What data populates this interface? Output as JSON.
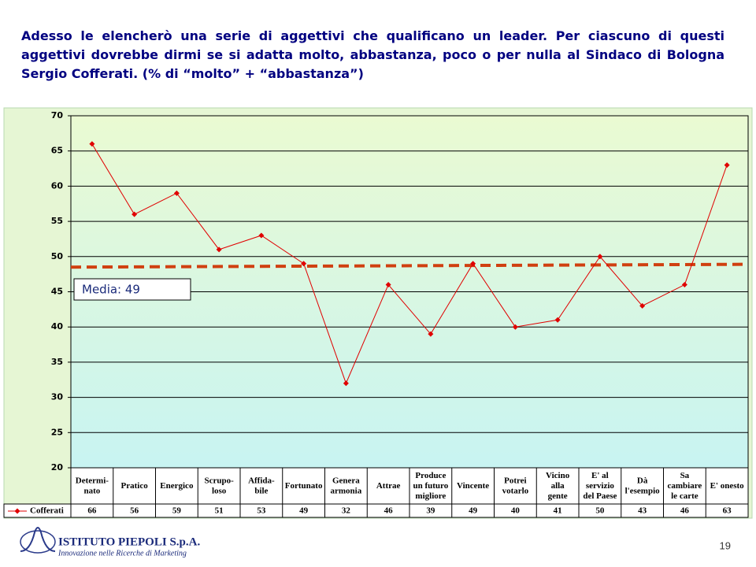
{
  "chart_data": {
    "type": "line",
    "title": "Adesso le elencherò una serie di aggettivi che qualificano un leader. Per ciascuno di questi aggettivi dovrebbe dirmi se si adatta molto, abbastanza, poco o per nulla al Sindaco di Bologna Sergio Cofferati. (% di “molto” + “abbastanza”)",
    "categories": [
      "Determi-\nnato",
      "Pratico",
      "Energico",
      "Scrupo-\nloso",
      "Affida-\nbile",
      "Fortunato",
      "Genera\narmonia",
      "Attrae",
      "Produce\nun futuro\nmigliore",
      "Vincente",
      "Potrei\nvotarlo",
      "Vicino\nalla\ngente",
      "E' al\nservizio\ndel Paese",
      "Dà\nl'esempio",
      "Sa\ncambiare\nle carte",
      "E' onesto"
    ],
    "series": [
      {
        "name": "Cofferati",
        "color": "#e00000",
        "values": [
          66,
          56,
          59,
          51,
          53,
          49,
          32,
          46,
          39,
          49,
          40,
          41,
          50,
          43,
          46,
          63
        ]
      }
    ],
    "mean_line": {
      "label": "Media: 49",
      "start": 48.5,
      "end": 48.9,
      "color": "#d04010"
    },
    "ylim": [
      20,
      70
    ],
    "yticks": [
      20,
      25,
      30,
      35,
      40,
      45,
      50,
      55,
      60,
      65,
      70
    ],
    "grid": true
  },
  "footer": {
    "company": "ISTITUTO PIEPOLI S.p.A.",
    "tagline": "Innovazione nelle Ricerche di Marketing",
    "page": "19"
  }
}
